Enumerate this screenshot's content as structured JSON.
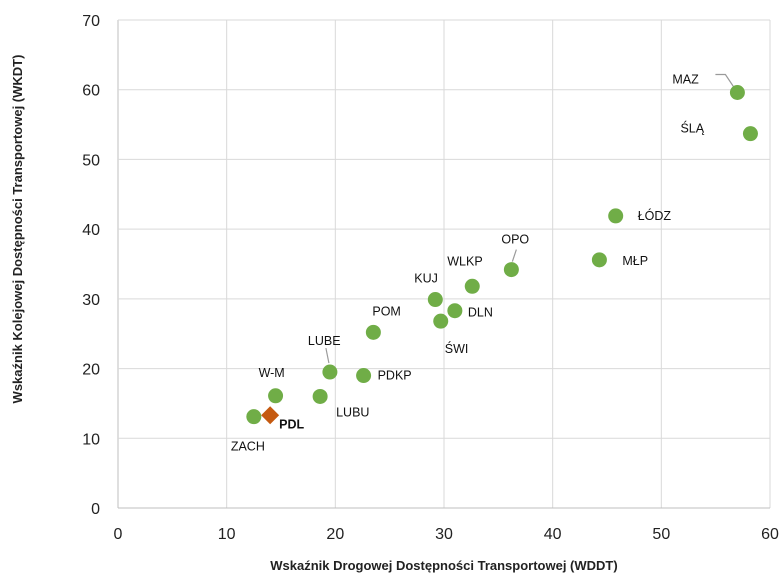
{
  "chart_data": {
    "type": "scatter",
    "title": "",
    "xlabel": "Wskaźnik Drogowej Dostępności Transportowej (WDDT)",
    "ylabel": "Wskaźnik Kolejowej Dostępności Transportowej (WKDT)",
    "xlim": [
      0,
      60
    ],
    "ylim": [
      0,
      70
    ],
    "xticks": [
      0,
      10,
      20,
      30,
      40,
      50,
      60
    ],
    "yticks": [
      0,
      10,
      20,
      30,
      40,
      50,
      60,
      70
    ],
    "grid": true,
    "colors": {
      "default": "#70ad47",
      "highlight": "#c55a11"
    },
    "points": [
      {
        "label": "MAZ",
        "x": 57.0,
        "y": 59.6,
        "marker": "circle",
        "leader": true
      },
      {
        "label": "ŚLĄ",
        "x": 58.2,
        "y": 53.7,
        "marker": "circle"
      },
      {
        "label": "ŁÓDZ",
        "x": 45.8,
        "y": 41.9,
        "marker": "circle"
      },
      {
        "label": "MŁP",
        "x": 44.3,
        "y": 35.6,
        "marker": "circle"
      },
      {
        "label": "OPO",
        "x": 36.2,
        "y": 34.2,
        "marker": "circle",
        "leader": true
      },
      {
        "label": "WLKP",
        "x": 32.6,
        "y": 31.8,
        "marker": "circle"
      },
      {
        "label": "KUJ",
        "x": 29.2,
        "y": 29.9,
        "marker": "circle"
      },
      {
        "label": "DLN",
        "x": 31.0,
        "y": 28.3,
        "marker": "circle"
      },
      {
        "label": "ŚWI",
        "x": 29.7,
        "y": 26.8,
        "marker": "circle"
      },
      {
        "label": "POM",
        "x": 23.5,
        "y": 25.2,
        "marker": "circle"
      },
      {
        "label": "LUBE",
        "x": 19.5,
        "y": 19.5,
        "marker": "circle",
        "leader": true
      },
      {
        "label": "PDKP",
        "x": 22.6,
        "y": 19.0,
        "marker": "circle"
      },
      {
        "label": "W-M",
        "x": 14.5,
        "y": 16.1,
        "marker": "circle"
      },
      {
        "label": "LUBU",
        "x": 18.6,
        "y": 16.0,
        "marker": "circle"
      },
      {
        "label": "ZACH",
        "x": 12.5,
        "y": 13.1,
        "marker": "circle"
      },
      {
        "label": "PDL",
        "x": 14.0,
        "y": 13.3,
        "marker": "diamond",
        "bold": true
      }
    ]
  }
}
